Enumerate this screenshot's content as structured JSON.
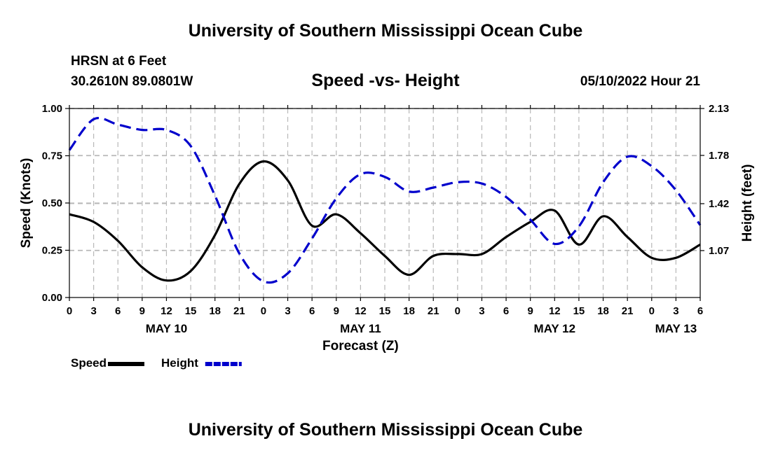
{
  "header": {
    "title": "University of Southern Mississippi Ocean Cube",
    "station": "HRSN at 6 Feet",
    "coordinates": "30.2610N  89.0801W",
    "subtitle": "Speed -vs- Height",
    "datetime": "05/10/2022 Hour 21"
  },
  "footer": {
    "title": "University of Southern Mississippi Ocean Cube"
  },
  "chart_data": {
    "type": "line",
    "title": "Speed -vs- Height",
    "xlabel": "Forecast (Z)",
    "ylabel": "Speed (Knots)",
    "y2label": "Height (feet)",
    "x_range_hours": [
      0,
      78
    ],
    "x_tick_step_hours": 3,
    "x_tick_labels": [
      "0",
      "3",
      "6",
      "9",
      "12",
      "15",
      "18",
      "21",
      "0",
      "3",
      "6",
      "9",
      "12",
      "15",
      "18",
      "21",
      "0",
      "3",
      "6",
      "9",
      "12",
      "15",
      "18",
      "21",
      "0",
      "3",
      "6"
    ],
    "date_labels": [
      {
        "label": "MAY 10",
        "hour": 12
      },
      {
        "label": "MAY 11",
        "hour": 36
      },
      {
        "label": "MAY 12",
        "hour": 60
      },
      {
        "label": "MAY 13",
        "hour": 75
      }
    ],
    "ylim": [
      0,
      1
    ],
    "y_ticks": [
      0.0,
      0.25,
      0.5,
      0.75,
      1.0
    ],
    "y_tick_labels": [
      "0.00",
      "0.25",
      "0.50",
      "0.75",
      "1.00"
    ],
    "y2lim": [
      0.72,
      2.13
    ],
    "y2_ticks": [
      1.07,
      1.42,
      1.78,
      2.13
    ],
    "y2_tick_labels": [
      "1.07",
      "1.42",
      "1.78",
      "2.13"
    ],
    "grid": true,
    "legend": {
      "position": "bottom-left",
      "entries": [
        "Speed",
        "Height"
      ]
    },
    "series": [
      {
        "name": "Speed",
        "axis": "left",
        "color": "#000000",
        "dash": "solid",
        "x": [
          0,
          3,
          6,
          9,
          12,
          15,
          18,
          21,
          24,
          27,
          30,
          33,
          36,
          39,
          42,
          45,
          48,
          51,
          54,
          57,
          60,
          63,
          66,
          69,
          72,
          75,
          78
        ],
        "y": [
          0.44,
          0.4,
          0.3,
          0.16,
          0.09,
          0.14,
          0.33,
          0.6,
          0.72,
          0.62,
          0.38,
          0.44,
          0.34,
          0.22,
          0.12,
          0.22,
          0.23,
          0.23,
          0.32,
          0.4,
          0.46,
          0.28,
          0.43,
          0.32,
          0.21,
          0.21,
          0.28
        ]
      },
      {
        "name": "Height",
        "axis": "right",
        "color": "#0000cc",
        "dash": "dashed",
        "x": [
          0,
          3,
          6,
          9,
          12,
          15,
          18,
          21,
          24,
          27,
          30,
          33,
          36,
          39,
          42,
          45,
          48,
          51,
          54,
          57,
          60,
          63,
          66,
          69,
          72,
          75,
          78
        ],
        "y": [
          1.82,
          2.05,
          2.01,
          1.97,
          1.97,
          1.85,
          1.48,
          1.05,
          0.84,
          0.9,
          1.16,
          1.46,
          1.64,
          1.62,
          1.51,
          1.54,
          1.58,
          1.57,
          1.47,
          1.3,
          1.12,
          1.25,
          1.58,
          1.77,
          1.7,
          1.52,
          1.26
        ]
      }
    ]
  }
}
